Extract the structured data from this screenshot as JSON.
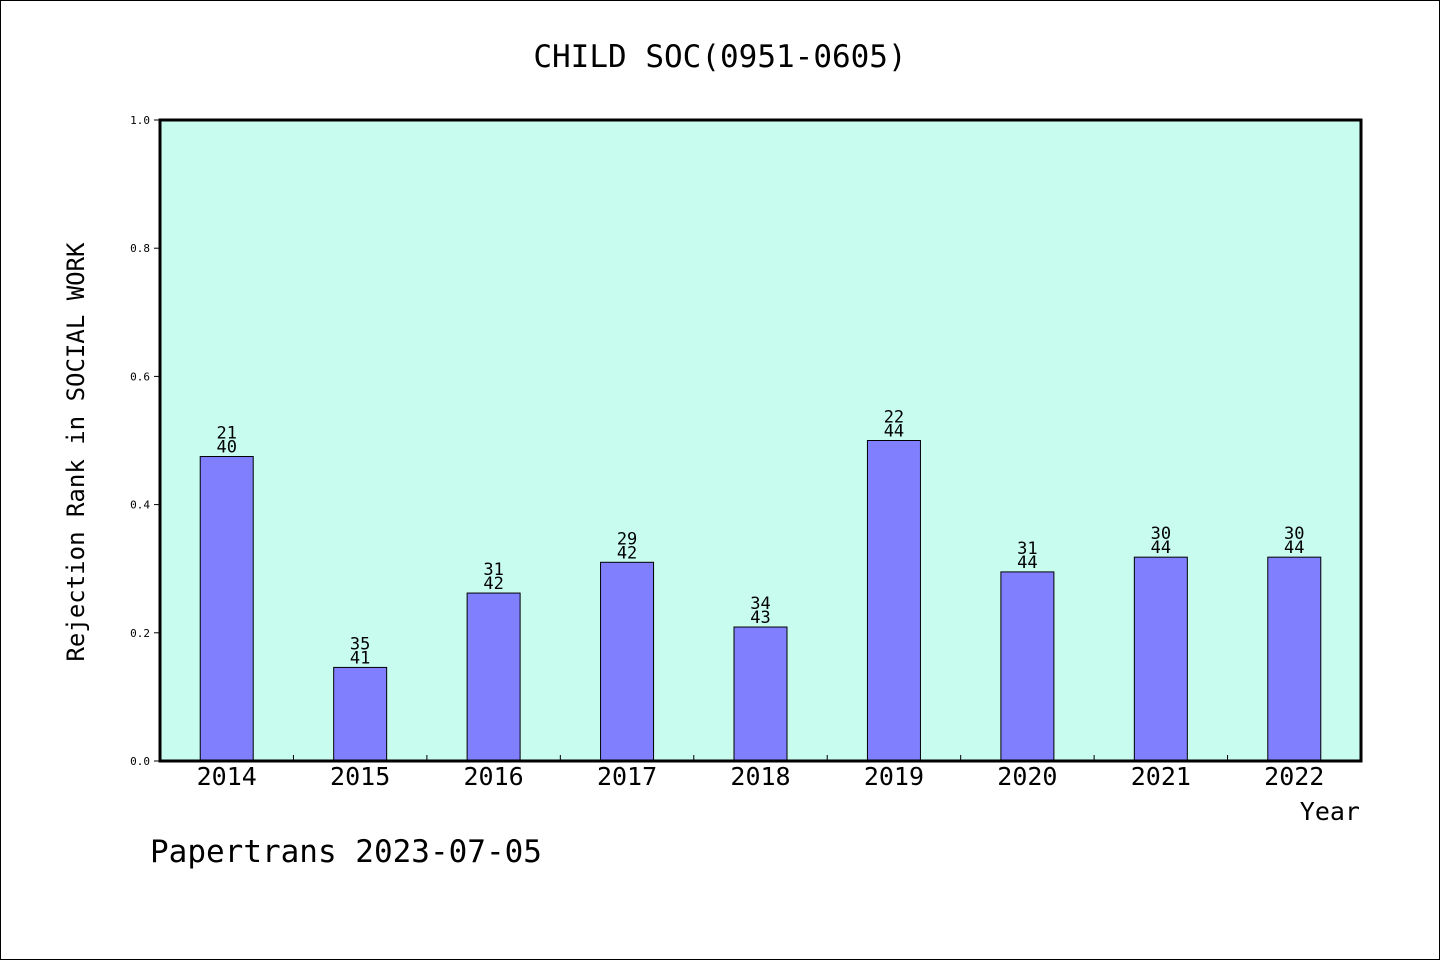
{
  "footer": "Papertrans 2023-07-05",
  "chart_data": {
    "type": "bar",
    "title": "CHILD SOC(0951-0605)",
    "xlabel": "Year",
    "ylabel": "Rejection Rank in SOCIAL WORK",
    "ylim": [
      0,
      1.0
    ],
    "yticks": [
      "0.0",
      "0.2",
      "0.4",
      "0.6",
      "0.8",
      "1.0"
    ],
    "categories": [
      "2014",
      "2015",
      "2016",
      "2017",
      "2018",
      "2019",
      "2020",
      "2021",
      "2022"
    ],
    "values": [
      0.475,
      0.146,
      0.262,
      0.31,
      0.209,
      0.5,
      0.295,
      0.318,
      0.318
    ],
    "labels_top": [
      "21",
      "35",
      "31",
      "29",
      "34",
      "22",
      "31",
      "30",
      "30"
    ],
    "labels_bottom": [
      "40",
      "41",
      "42",
      "42",
      "43",
      "44",
      "44",
      "44",
      "44"
    ],
    "grid": false,
    "legend": "none",
    "colors": {
      "plot_background": "#c8fcee",
      "bar_fill": "#8080ff",
      "bar_stroke": "#000000"
    }
  }
}
